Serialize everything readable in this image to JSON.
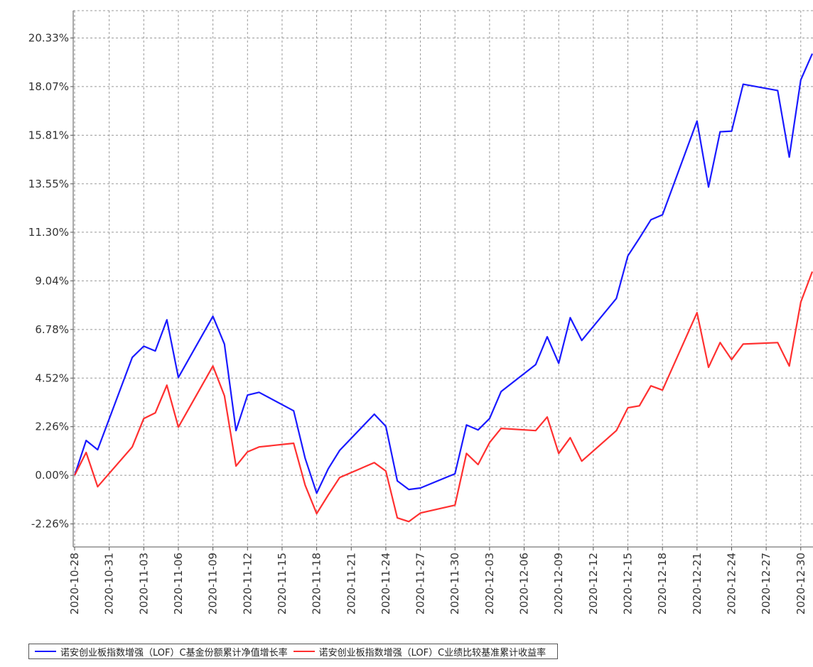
{
  "chart_data": {
    "type": "line",
    "x": [
      "2020-10-28",
      "2020-10-29",
      "2020-10-30",
      "2020-11-02",
      "2020-11-03",
      "2020-11-04",
      "2020-11-05",
      "2020-11-06",
      "2020-11-09",
      "2020-11-10",
      "2020-11-11",
      "2020-11-12",
      "2020-11-13",
      "2020-11-16",
      "2020-11-17",
      "2020-11-18",
      "2020-11-19",
      "2020-11-20",
      "2020-11-23",
      "2020-11-24",
      "2020-11-25",
      "2020-11-26",
      "2020-11-27",
      "2020-11-30",
      "2020-12-01",
      "2020-12-02",
      "2020-12-03",
      "2020-12-04",
      "2020-12-07",
      "2020-12-08",
      "2020-12-09",
      "2020-12-10",
      "2020-12-11",
      "2020-12-14",
      "2020-12-15",
      "2020-12-16",
      "2020-12-17",
      "2020-12-18",
      "2020-12-21",
      "2020-12-22",
      "2020-12-23",
      "2020-12-24",
      "2020-12-25",
      "2020-12-28",
      "2020-12-29",
      "2020-12-30",
      "2020-12-31"
    ],
    "series": [
      {
        "name": "诺安创业板指数增强（LOF）C基金份额累计净值增长率",
        "color": "#1a1aff",
        "values": [
          0,
          1.62,
          1.19,
          5.48,
          6.0,
          5.78,
          7.23,
          4.55,
          7.39,
          6.1,
          2.08,
          3.73,
          3.86,
          3.0,
          0.79,
          -0.83,
          0.3,
          1.16,
          2.84,
          2.28,
          -0.26,
          -0.66,
          -0.59,
          0.07,
          2.34,
          2.11,
          2.64,
          3.89,
          5.15,
          6.44,
          5.21,
          7.33,
          6.27,
          8.22,
          10.2,
          11.02,
          11.88,
          12.11,
          16.47,
          13.4,
          15.97,
          16.0,
          18.18,
          17.89,
          14.79,
          18.38,
          19.6
        ]
      },
      {
        "name": "诺安创业板指数增强（LOF）C业绩比较基准累计收益率",
        "color": "#ff3030",
        "values": [
          0,
          1.06,
          -0.53,
          1.32,
          2.64,
          2.9,
          4.19,
          2.24,
          5.08,
          3.7,
          0.43,
          1.09,
          1.32,
          1.49,
          -0.46,
          -1.78,
          -0.92,
          -0.1,
          0.59,
          0.2,
          -1.98,
          -2.15,
          -1.75,
          -1.39,
          1.02,
          0.5,
          1.52,
          2.18,
          2.08,
          2.71,
          1.02,
          1.75,
          0.66,
          2.08,
          3.14,
          3.23,
          4.16,
          3.96,
          7.56,
          5.02,
          6.17,
          5.38,
          6.1,
          6.17,
          5.08,
          8.05,
          9.47
        ]
      }
    ],
    "xlim": [
      "2020-10-28",
      "2020-12-31"
    ],
    "xticks": [
      "2020-10-28",
      "2020-10-31",
      "2020-11-03",
      "2020-11-06",
      "2020-11-09",
      "2020-11-12",
      "2020-11-15",
      "2020-11-18",
      "2020-11-21",
      "2020-11-24",
      "2020-11-27",
      "2020-11-30",
      "2020-12-03",
      "2020-12-06",
      "2020-12-09",
      "2020-12-12",
      "2020-12-15",
      "2020-12-18",
      "2020-12-21",
      "2020-12-24",
      "2020-12-27",
      "2020-12-30"
    ],
    "ylim": [
      -3.33,
      21.6
    ],
    "yticks": [
      {
        "value": -2.26,
        "label": "-2.26%"
      },
      {
        "value": 0,
        "label": "0.00%"
      },
      {
        "value": 2.26,
        "label": "2.26%"
      },
      {
        "value": 4.52,
        "label": "4.52%"
      },
      {
        "value": 6.78,
        "label": "6.78%"
      },
      {
        "value": 9.04,
        "label": "9.04%"
      },
      {
        "value": 11.3,
        "label": "11.30%"
      },
      {
        "value": 13.55,
        "label": "13.55%"
      },
      {
        "value": 15.81,
        "label": "15.81%"
      },
      {
        "value": 18.07,
        "label": "18.07%"
      },
      {
        "value": 20.33,
        "label": "20.33%"
      }
    ],
    "grid": true,
    "legend": "bottom"
  }
}
